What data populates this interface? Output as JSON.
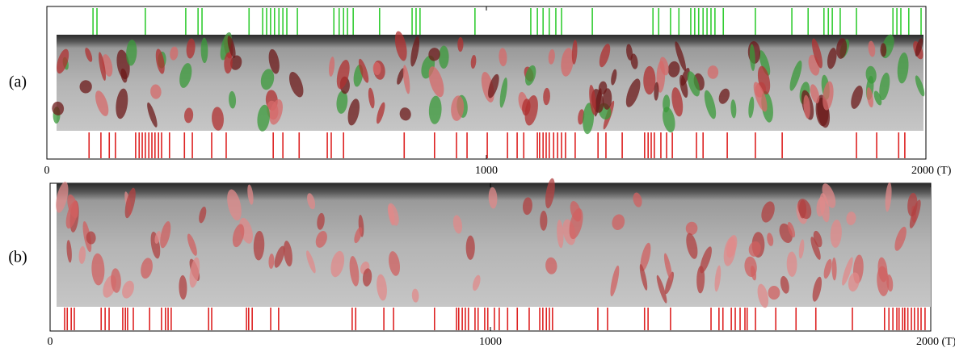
{
  "chart_data": [
    {
      "type": "event",
      "panel_label": "(a)",
      "xlim": [
        0,
        2000
      ],
      "xticks": [
        0,
        1000,
        {
          "value": 2000,
          "label": "2000 (T)"
        }
      ],
      "series": [
        {
          "color": "#33cc33",
          "values": [
            105,
            114,
            224,
            316,
            344,
            353,
            460,
            491,
            500,
            509,
            518,
            528,
            537,
            546,
            570,
            653,
            665,
            675,
            684,
            697,
            757,
            831,
            840,
            849,
            974,
            1101,
            1116,
            1129,
            1143,
            1158,
            1171,
            1241,
            1379,
            1392,
            1419,
            1438,
            1465,
            1474,
            1483,
            1493,
            1502,
            1511,
            1520,
            1539,
            1612,
            1695,
            1732,
            1768,
            1778,
            1787,
            1805,
            1842,
            1925,
            1934,
            1943,
            1961,
            1989
          ]
        },
        {
          "color": "#dd2222",
          "values": [
            96,
            123,
            142,
            156,
            202,
            210,
            217,
            224,
            232,
            239,
            246,
            254,
            261,
            279,
            313,
            331,
            375,
            408,
            515,
            537,
            574,
            638,
            647,
            675,
            813,
            882,
            932,
            956,
            1002,
            1048,
            1070,
            1085,
            1116,
            1121,
            1129,
            1136,
            1143,
            1153,
            1162,
            1171,
            1180,
            1202,
            1254,
            1272,
            1309,
            1360,
            1368,
            1375,
            1382,
            1397,
            1410,
            1423,
            1478,
            1493,
            1548,
            1612,
            1673,
            1842,
            1888,
            1938,
            1952
          ]
        }
      ]
    },
    {
      "type": "event",
      "panel_label": "(b)",
      "xlim": [
        0,
        2000
      ],
      "xticks": [
        0,
        1000,
        {
          "value": 2000,
          "label": "2000 (T)"
        }
      ],
      "series": [
        {
          "color": "#dd2222",
          "values": [
            33,
            39,
            48,
            55,
            116,
            125,
            134,
            165,
            171,
            176,
            189,
            226,
            253,
            262,
            268,
            275,
            360,
            367,
            446,
            451,
            459,
            501,
            519,
            686,
            694,
            758,
            780,
            873,
            923,
            928,
            936,
            943,
            950,
            965,
            972,
            987,
            994,
            1009,
            1020,
            1039,
            1061,
            1088,
            1112,
            1119,
            1127,
            1134,
            1141,
            1244,
            1266,
            1350,
            1358,
            1409,
            1501,
            1519,
            1528,
            1547,
            1556,
            1567,
            1578,
            1583,
            1602,
            1648,
            1694,
            1739,
            1822,
            1895,
            1905,
            1914,
            1923,
            1928,
            1936,
            1941,
            1948,
            1956,
            1963,
            1971,
            1978,
            1987
          ]
        }
      ]
    }
  ]
}
